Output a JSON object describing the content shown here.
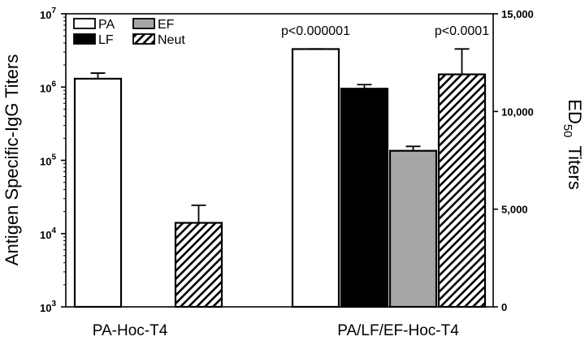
{
  "chart_data": {
    "type": "bar",
    "categories": [
      "PA-Hoc-T4",
      "PA/LF/EF-Hoc-T4"
    ],
    "left_axis": {
      "label": "Antigen Specific-IgG Titers",
      "scale": "log",
      "range": [
        1000,
        10000000
      ],
      "ticks": [
        {
          "value": 1000,
          "base": "10",
          "exp": "3"
        },
        {
          "value": 10000,
          "base": "10",
          "exp": "4"
        },
        {
          "value": 100000,
          "base": "10",
          "exp": "5"
        },
        {
          "value": 1000000,
          "base": "10",
          "exp": "6"
        },
        {
          "value": 10000000,
          "base": "10",
          "exp": "7"
        }
      ]
    },
    "right_axis": {
      "label_main": "ED",
      "label_sub": "50",
      "label_rest": "Titers",
      "scale": "linear",
      "range": [
        0,
        15000
      ],
      "ticks": [
        {
          "value": 0,
          "label": "0"
        },
        {
          "value": 5000,
          "label": "5,000"
        },
        {
          "value": 10000,
          "label": "10,000"
        },
        {
          "value": 15000,
          "label": "15,000"
        }
      ]
    },
    "series": [
      {
        "name": "PA",
        "style": "white",
        "axis": "left",
        "values": [
          1300000,
          3300000
        ],
        "errors": [
          250000,
          20000
        ]
      },
      {
        "name": "LF",
        "style": "black",
        "axis": "left",
        "values": [
          null,
          950000
        ],
        "errors": [
          null,
          130000
        ]
      },
      {
        "name": "EF",
        "style": "gray",
        "axis": "left",
        "values": [
          null,
          135000
        ],
        "errors": [
          null,
          20000
        ]
      },
      {
        "name": "Neut",
        "style": "hatch",
        "axis": "right",
        "values": [
          4300,
          11900
        ],
        "errors": [
          900,
          1300
        ]
      }
    ],
    "legend": {
      "placement": "top-left"
    },
    "annotations": [
      {
        "text": "p<0.000001",
        "category": 1,
        "series": "PA"
      },
      {
        "text": "p<0.0001",
        "category": 1,
        "series": "Neut"
      }
    ],
    "colors": {
      "white": "#ffffff",
      "black": "#000000",
      "gray": "#a6a6a6",
      "stroke": "#000000"
    }
  }
}
